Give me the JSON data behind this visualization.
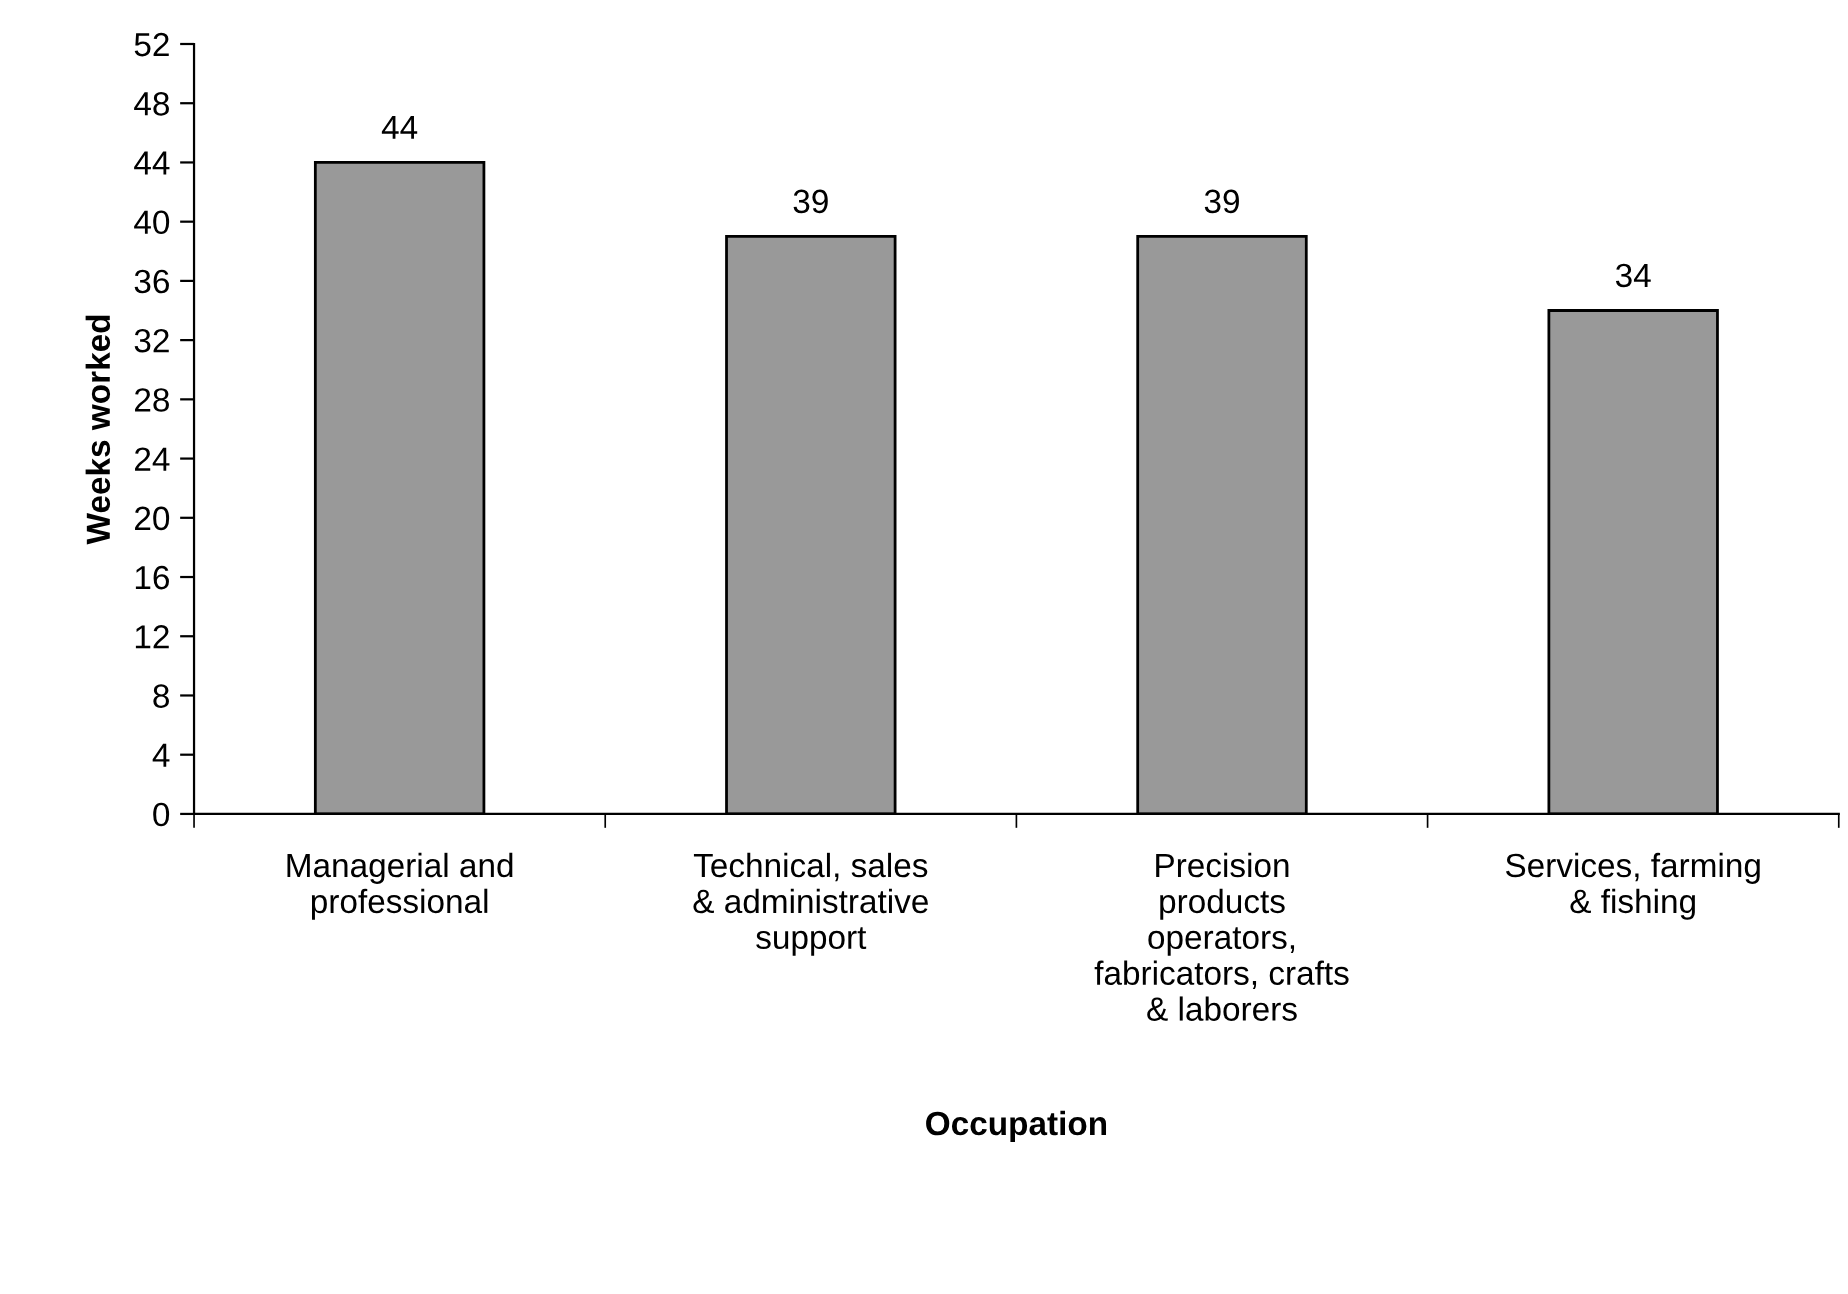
{
  "chart_data": {
    "type": "bar",
    "xlabel": "Occupation",
    "ylabel": "Weeks worked",
    "categories": [
      "Managerial and\nprofessional",
      "Technical, sales\n& administrative\nsupport",
      "Precision\nproducts\noperators,\nfabricators, crafts\n& laborers",
      "Services, farming\n& fishing"
    ],
    "values": [
      44,
      39,
      39,
      34
    ],
    "color": "#999999",
    "ylim": [
      0,
      52
    ],
    "yticks": [
      0,
      4,
      8,
      12,
      16,
      20,
      24,
      28,
      32,
      36,
      40,
      44,
      48,
      52
    ],
    "data_labels": true,
    "grid": false,
    "legend": false
  }
}
